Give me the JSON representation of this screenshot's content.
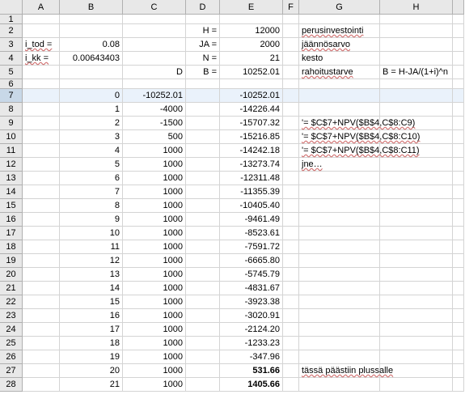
{
  "columns": [
    "A",
    "B",
    "C",
    "D",
    "E",
    "F",
    "G",
    "H",
    ""
  ],
  "col_widths": {
    "A": 46,
    "B": 78,
    "C": 78,
    "D": 42,
    "E": 78,
    "F": 20,
    "G": 100,
    "H": 90,
    "I": 14
  },
  "selected_row": 7,
  "rows": [
    {
      "n": 1,
      "h": "short",
      "cells": {}
    },
    {
      "n": 2,
      "cells": {
        "D": {
          "t": "H =",
          "a": "right"
        },
        "E": {
          "t": "12000",
          "a": "right"
        },
        "G": {
          "t": "perusinvestointi",
          "a": "left",
          "wavy": true,
          "overflow": true
        }
      }
    },
    {
      "n": 3,
      "cells": {
        "A": {
          "t": "i_tod =",
          "a": "left",
          "wavy": true
        },
        "B": {
          "t": "0.08",
          "a": "right"
        },
        "D": {
          "t": "JA =",
          "a": "right"
        },
        "E": {
          "t": "2000",
          "a": "right"
        },
        "G": {
          "t": "jäännösarvo",
          "a": "left",
          "wavy": true
        }
      }
    },
    {
      "n": 4,
      "cells": {
        "A": {
          "t": "i_kk =",
          "a": "left",
          "wavy": true
        },
        "B": {
          "t": "0.00643403",
          "a": "right"
        },
        "D": {
          "t": "N =",
          "a": "right"
        },
        "E": {
          "t": "21",
          "a": "right"
        },
        "G": {
          "t": "kesto",
          "a": "left"
        }
      }
    },
    {
      "n": 5,
      "cells": {
        "C": {
          "t": "D",
          "a": "right"
        },
        "D": {
          "t": "B =",
          "a": "right"
        },
        "E": {
          "t": "10252.01",
          "a": "right"
        },
        "G": {
          "t": "rahoitustarve",
          "a": "left",
          "wavy": true
        },
        "H": {
          "t": "B = H-JA/(1+i)^n",
          "a": "left",
          "overflow": true
        }
      }
    },
    {
      "n": 6,
      "h": "short",
      "cells": {}
    },
    {
      "n": 7,
      "selected": true,
      "cells": {
        "B": {
          "t": "0",
          "a": "right"
        },
        "C": {
          "t": "-10252.01",
          "a": "right"
        },
        "E": {
          "t": "-10252.01",
          "a": "right"
        }
      }
    },
    {
      "n": 8,
      "cells": {
        "B": {
          "t": "1",
          "a": "right"
        },
        "C": {
          "t": "-4000",
          "a": "right"
        },
        "E": {
          "t": "-14226.44",
          "a": "right"
        }
      }
    },
    {
      "n": 9,
      "cells": {
        "B": {
          "t": "2",
          "a": "right"
        },
        "C": {
          "t": "-1500",
          "a": "right"
        },
        "E": {
          "t": "-15707.32",
          "a": "right"
        },
        "G": {
          "t": "'= $C$7+NPV($B$4,C$8:C9)",
          "a": "left",
          "wavy": true,
          "overflow": true
        }
      }
    },
    {
      "n": 10,
      "cells": {
        "B": {
          "t": "3",
          "a": "right"
        },
        "C": {
          "t": "500",
          "a": "right"
        },
        "E": {
          "t": "-15216.85",
          "a": "right"
        },
        "G": {
          "t": "'= $C$7+NPV($B$4,C$8:C10)",
          "a": "left",
          "wavy": true,
          "overflow": true
        }
      }
    },
    {
      "n": 11,
      "cells": {
        "B": {
          "t": "4",
          "a": "right"
        },
        "C": {
          "t": "1000",
          "a": "right"
        },
        "E": {
          "t": "-14242.18",
          "a": "right"
        },
        "G": {
          "t": "'= $C$7+NPV($B$4,C$8:C11)",
          "a": "left",
          "wavy": true,
          "overflow": true
        }
      }
    },
    {
      "n": 12,
      "cells": {
        "B": {
          "t": "5",
          "a": "right"
        },
        "C": {
          "t": "1000",
          "a": "right"
        },
        "E": {
          "t": "-13273.74",
          "a": "right"
        },
        "G": {
          "t": "      jne…",
          "a": "left",
          "wavy": true
        }
      }
    },
    {
      "n": 13,
      "cells": {
        "B": {
          "t": "6",
          "a": "right"
        },
        "C": {
          "t": "1000",
          "a": "right"
        },
        "E": {
          "t": "-12311.48",
          "a": "right"
        }
      }
    },
    {
      "n": 14,
      "cells": {
        "B": {
          "t": "7",
          "a": "right"
        },
        "C": {
          "t": "1000",
          "a": "right"
        },
        "E": {
          "t": "-11355.39",
          "a": "right"
        }
      }
    },
    {
      "n": 15,
      "cells": {
        "B": {
          "t": "8",
          "a": "right"
        },
        "C": {
          "t": "1000",
          "a": "right"
        },
        "E": {
          "t": "-10405.40",
          "a": "right"
        }
      }
    },
    {
      "n": 16,
      "cells": {
        "B": {
          "t": "9",
          "a": "right"
        },
        "C": {
          "t": "1000",
          "a": "right"
        },
        "E": {
          "t": "-9461.49",
          "a": "right"
        }
      }
    },
    {
      "n": 17,
      "cells": {
        "B": {
          "t": "10",
          "a": "right"
        },
        "C": {
          "t": "1000",
          "a": "right"
        },
        "E": {
          "t": "-8523.61",
          "a": "right"
        }
      }
    },
    {
      "n": 18,
      "cells": {
        "B": {
          "t": "11",
          "a": "right"
        },
        "C": {
          "t": "1000",
          "a": "right"
        },
        "E": {
          "t": "-7591.72",
          "a": "right"
        }
      }
    },
    {
      "n": 19,
      "cells": {
        "B": {
          "t": "12",
          "a": "right"
        },
        "C": {
          "t": "1000",
          "a": "right"
        },
        "E": {
          "t": "-6665.80",
          "a": "right"
        }
      }
    },
    {
      "n": 20,
      "cells": {
        "B": {
          "t": "13",
          "a": "right"
        },
        "C": {
          "t": "1000",
          "a": "right"
        },
        "E": {
          "t": "-5745.79",
          "a": "right"
        }
      }
    },
    {
      "n": 21,
      "cells": {
        "B": {
          "t": "14",
          "a": "right"
        },
        "C": {
          "t": "1000",
          "a": "right"
        },
        "E": {
          "t": "-4831.67",
          "a": "right"
        }
      }
    },
    {
      "n": 22,
      "cells": {
        "B": {
          "t": "15",
          "a": "right"
        },
        "C": {
          "t": "1000",
          "a": "right"
        },
        "E": {
          "t": "-3923.38",
          "a": "right"
        }
      }
    },
    {
      "n": 23,
      "cells": {
        "B": {
          "t": "16",
          "a": "right"
        },
        "C": {
          "t": "1000",
          "a": "right"
        },
        "E": {
          "t": "-3020.91",
          "a": "right"
        }
      }
    },
    {
      "n": 24,
      "cells": {
        "B": {
          "t": "17",
          "a": "right"
        },
        "C": {
          "t": "1000",
          "a": "right"
        },
        "E": {
          "t": "-2124.20",
          "a": "right"
        }
      }
    },
    {
      "n": 25,
      "cells": {
        "B": {
          "t": "18",
          "a": "right"
        },
        "C": {
          "t": "1000",
          "a": "right"
        },
        "E": {
          "t": "-1233.23",
          "a": "right"
        }
      }
    },
    {
      "n": 26,
      "cells": {
        "B": {
          "t": "19",
          "a": "right"
        },
        "C": {
          "t": "1000",
          "a": "right"
        },
        "E": {
          "t": "-347.96",
          "a": "right"
        }
      }
    },
    {
      "n": 27,
      "cells": {
        "B": {
          "t": "20",
          "a": "right"
        },
        "C": {
          "t": "1000",
          "a": "right"
        },
        "E": {
          "t": "531.66",
          "a": "right",
          "bold": true
        },
        "G": {
          "t": "tässä päästiin plussalle",
          "a": "left",
          "wavy": true,
          "overflow": true
        }
      }
    },
    {
      "n": 28,
      "cells": {
        "B": {
          "t": "21",
          "a": "right"
        },
        "C": {
          "t": "1000",
          "a": "right"
        },
        "E": {
          "t": "1405.66",
          "a": "right",
          "bold": true
        }
      }
    }
  ],
  "colors": {
    "header_bg": "#e8e8e8",
    "header_border": "#b0b0b0",
    "cell_border": "#d4d4d4",
    "selected_row_bg": "#eaf2fb",
    "selected_header_bg": "#c8d8e8",
    "wavy_color": "#d07070"
  }
}
